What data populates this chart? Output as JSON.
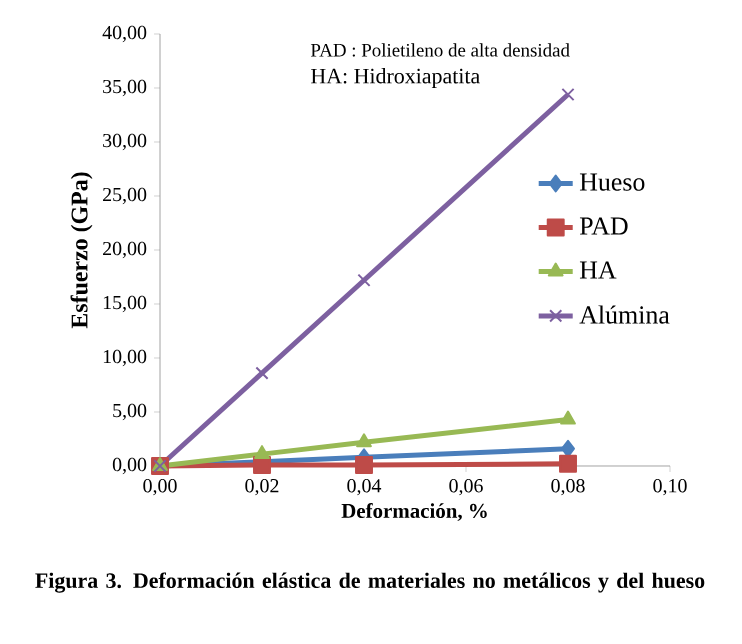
{
  "chart_data": {
    "type": "line",
    "title": "Figura 3. Deformación elástica de materiales no metálicos y del hueso",
    "xlabel": "Deformación, %",
    "ylabel": "Esfuerzo (GPa)",
    "annotations": [
      "PAD : Polietileno de alta densidad",
      "HA: Hidroxiapatita"
    ],
    "x": [
      0,
      0.02,
      0.04,
      0.08
    ],
    "series": [
      {
        "name": "Hueso",
        "color": "#4a7ebb",
        "marker": "diamond",
        "values": [
          0,
          0.4,
          0.8,
          1.6
        ]
      },
      {
        "name": "PAD",
        "color": "#be4b48",
        "marker": "square",
        "values": [
          0,
          0.1,
          0.1,
          0.2
        ]
      },
      {
        "name": "HA",
        "color": "#98b954",
        "marker": "triangle",
        "values": [
          0,
          1.1,
          2.2,
          4.3
        ]
      },
      {
        "name": "Alúmina",
        "color": "#7d60a0",
        "marker": "cross",
        "values": [
          0,
          8.6,
          17.2,
          34.4
        ]
      }
    ],
    "xlim": [
      0,
      0.1
    ],
    "ylim": [
      0,
      40
    ],
    "xticks": [
      {
        "value": 0,
        "label": "0,00"
      },
      {
        "value": 0.02,
        "label": "0,02"
      },
      {
        "value": 0.04,
        "label": "0,04"
      },
      {
        "value": 0.06,
        "label": "0,06"
      },
      {
        "value": 0.08,
        "label": "0,08"
      },
      {
        "value": 0.1,
        "label": "0,10"
      }
    ],
    "yticks": [
      {
        "value": 0,
        "label": "0,00"
      },
      {
        "value": 5,
        "label": "5,00"
      },
      {
        "value": 10,
        "label": "10,00"
      },
      {
        "value": 15,
        "label": "15,00"
      },
      {
        "value": 20,
        "label": "20,00"
      },
      {
        "value": 25,
        "label": "25,00"
      },
      {
        "value": 30,
        "label": "30,00"
      },
      {
        "value": 35,
        "label": "35,00"
      },
      {
        "value": 40,
        "label": "40,00"
      }
    ],
    "legend": "right",
    "grid": false,
    "line_style": "solid"
  }
}
